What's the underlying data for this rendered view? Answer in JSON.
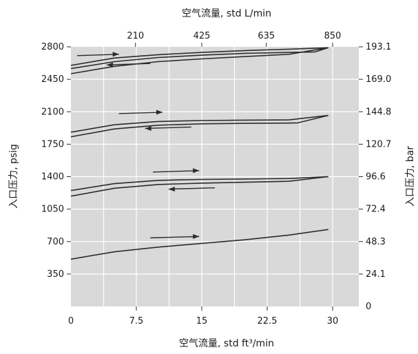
{
  "chart_data": {
    "type": "line",
    "title": "",
    "xlabel": "空气流量, std ft³/min",
    "ylabel": "入口压力, psig",
    "x2label": "空气流量, std L/min",
    "y2label": "入口压力, bar",
    "xlim": [
      0,
      33
    ],
    "ylim": [
      0,
      2800
    ],
    "xticks": [
      "0",
      "7.5",
      "15",
      "22.5",
      "30"
    ],
    "xtick_values": [
      0,
      7.5,
      15,
      22.5,
      30
    ],
    "x2ticks": [
      "210",
      "425",
      "635",
      "850"
    ],
    "x2tick_values": [
      7.4,
      15.0,
      22.4,
      30.0
    ],
    "yticks": [
      "350",
      "700",
      "1050",
      "1400",
      "1750",
      "2100",
      "2450",
      "2800"
    ],
    "ytick_values": [
      350,
      700,
      1050,
      1400,
      1750,
      2100,
      2450,
      2800
    ],
    "y2ticks": [
      "0",
      "24.1",
      "48.3",
      "72.4",
      "96.6",
      "120.7",
      "144.8",
      "169.0",
      "193.1"
    ],
    "y2tick_values": [
      0,
      350,
      700,
      1050,
      1400,
      1750,
      2100,
      2450,
      2800
    ],
    "grid": true,
    "legend": "none",
    "colors": {
      "plot_bg": "#d9d9d9",
      "grid": "#ffffff",
      "line": "#2b2b2b",
      "text": "#1a1a1a"
    },
    "series": [
      {
        "x": [
          0,
          5,
          10,
          15,
          20,
          25,
          29.5
        ],
        "y": [
          2600,
          2680,
          2715,
          2740,
          2760,
          2775,
          2790
        ]
      },
      {
        "x": [
          0,
          5,
          10,
          15,
          20,
          25,
          28,
          29.5
        ],
        "y": [
          2565,
          2640,
          2685,
          2710,
          2730,
          2740,
          2745,
          2790
        ]
      },
      {
        "x": [
          0,
          5,
          10,
          15,
          20,
          25,
          29.5
        ],
        "y": [
          2510,
          2590,
          2640,
          2670,
          2695,
          2720,
          2790
        ]
      },
      {
        "x": [
          0,
          5,
          10,
          15,
          20,
          25,
          29.5
        ],
        "y": [
          1880,
          1960,
          1995,
          2005,
          2010,
          2012,
          2060
        ]
      },
      {
        "x": [
          0,
          5,
          10,
          15,
          20,
          25,
          26,
          29.5
        ],
        "y": [
          1830,
          1915,
          1955,
          1970,
          1975,
          1978,
          1980,
          2060
        ]
      },
      {
        "x": [
          0,
          5,
          10,
          15,
          20,
          25,
          29.5
        ],
        "y": [
          1250,
          1325,
          1360,
          1370,
          1375,
          1380,
          1400
        ]
      },
      {
        "x": [
          0,
          5,
          10,
          15,
          20,
          25,
          29.5
        ],
        "y": [
          1190,
          1275,
          1315,
          1330,
          1340,
          1350,
          1400
        ]
      },
      {
        "x": [
          0,
          5,
          10,
          15,
          20,
          25,
          29.5
        ],
        "y": [
          510,
          590,
          640,
          680,
          720,
          770,
          830
        ]
      }
    ],
    "arrows": [
      {
        "direction": "right",
        "x1": 0.7,
        "x2": 5.5,
        "y": 2705
      },
      {
        "direction": "left",
        "x1": 9.1,
        "x2": 4.1,
        "y": 2620
      },
      {
        "direction": "right",
        "x1": 5.5,
        "x2": 10.5,
        "y": 2080
      },
      {
        "direction": "left",
        "x1": 13.8,
        "x2": 8.5,
        "y": 1935
      },
      {
        "direction": "right",
        "x1": 9.4,
        "x2": 14.7,
        "y": 1450
      },
      {
        "direction": "left",
        "x1": 16.5,
        "x2": 11.2,
        "y": 1280
      },
      {
        "direction": "right",
        "x1": 9.1,
        "x2": 14.7,
        "y": 740
      }
    ]
  }
}
